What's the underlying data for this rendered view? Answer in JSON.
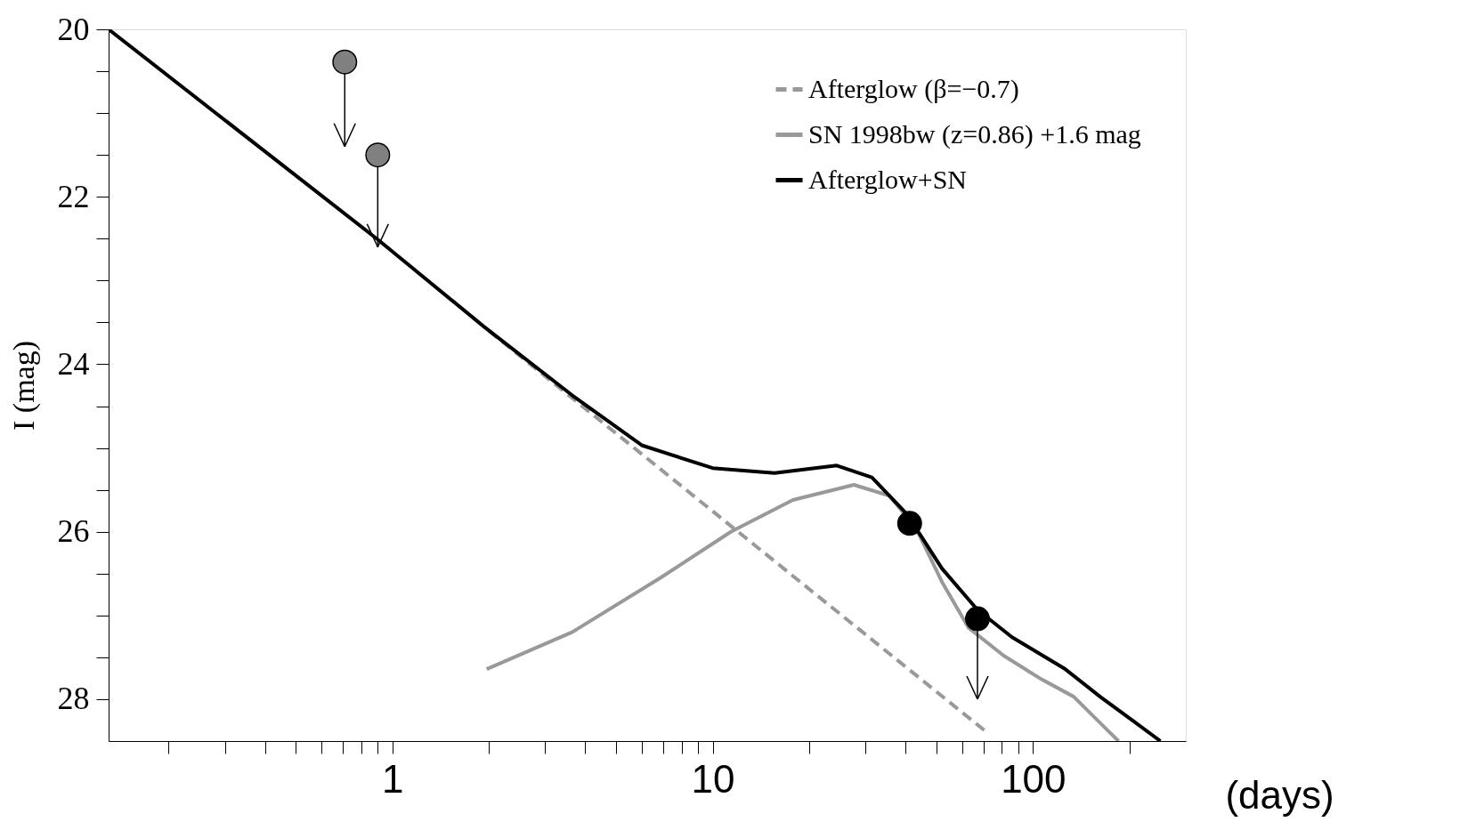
{
  "chart_data": {
    "type": "line",
    "xlabel": "(days)",
    "ylabel": "I (mag)",
    "log": "x",
    "grid": false,
    "legend": "top right",
    "xlim": [
      0.13,
      300
    ],
    "ylim": [
      28.5,
      20
    ],
    "xticks": [
      {
        "value": 0.2,
        "label": null
      },
      {
        "value": 0.3,
        "label": null
      },
      {
        "value": 0.4,
        "label": null
      },
      {
        "value": 0.5,
        "label": null
      },
      {
        "value": 0.6,
        "label": null
      },
      {
        "value": 0.7,
        "label": null
      },
      {
        "value": 0.8,
        "label": null
      },
      {
        "value": 0.9,
        "label": null
      },
      1,
      {
        "value": 2,
        "label": null
      },
      {
        "value": 3,
        "label": null
      },
      {
        "value": 4,
        "label": null
      },
      {
        "value": 5,
        "label": null
      },
      {
        "value": 6,
        "label": null
      },
      {
        "value": 7,
        "label": null
      },
      {
        "value": 8,
        "label": null
      },
      {
        "value": 9,
        "label": null
      },
      10,
      {
        "value": 20,
        "label": null
      },
      {
        "value": 30,
        "label": null
      },
      {
        "value": 40,
        "label": null
      },
      {
        "value": 50,
        "label": null
      },
      {
        "value": 60,
        "label": null
      },
      {
        "value": 70,
        "label": null
      },
      {
        "value": 80,
        "label": null
      },
      {
        "value": 90,
        "label": null
      },
      100,
      {
        "value": 200,
        "label": null
      }
    ],
    "yticks": [
      20,
      {
        "value": 20.5,
        "label": null
      },
      {
        "value": 21,
        "label": null
      },
      {
        "value": 21.5,
        "label": null
      },
      22,
      {
        "value": 22.5,
        "label": null
      },
      {
        "value": 23,
        "label": null
      },
      {
        "value": 23.5,
        "label": null
      },
      24,
      {
        "value": 24.5,
        "label": null
      },
      {
        "value": 25,
        "label": null
      },
      {
        "value": 25.5,
        "label": null
      },
      26,
      {
        "value": 26.5,
        "label": null
      },
      {
        "value": 27,
        "label": null
      },
      {
        "value": 27.5,
        "label": null
      },
      28
    ],
    "series": [
      {
        "name": "Afterglow (β=−0.7)",
        "type": "line",
        "color": "#999999",
        "line_style": "dashed",
        "x": [
          2.0,
          72
        ],
        "values": [
          23.6,
          28.4
        ]
      },
      {
        "name": "SN 1998bw (z=0.86) +1.6 mag",
        "type": "line",
        "color": "#999999",
        "line_style": "solid",
        "x": [
          1.97,
          3.64,
          6.87,
          11.4,
          17.8,
          27.6,
          35.6,
          43,
          52,
          63,
          81,
          105,
          134,
          174,
          185
        ],
        "values": [
          27.64,
          27.2,
          26.55,
          26.0,
          25.62,
          25.44,
          25.57,
          25.95,
          26.6,
          27.15,
          27.48,
          27.75,
          27.97,
          28.4,
          28.5
        ]
      },
      {
        "name": "Afterglow+SN",
        "type": "line",
        "color": "#000000",
        "line_style": "solid",
        "x": [
          0.13,
          0.9,
          1.93,
          3.64,
          6.03,
          10,
          15.6,
          24.4,
          31.4,
          40.4,
          52,
          67,
          86,
          126,
          162,
          250
        ],
        "values": [
          20.0,
          22.51,
          23.55,
          24.37,
          24.97,
          25.24,
          25.3,
          25.21,
          25.35,
          25.79,
          26.44,
          26.93,
          27.26,
          27.64,
          27.97,
          28.5
        ]
      },
      {
        "type": "scatter",
        "marker": "circle",
        "color": "#808080",
        "x": [
          0.71,
          0.9
        ],
        "values": [
          20.39,
          21.5
        ],
        "errors": [
          [
            20.39,
            21.4
          ],
          [
            21.5,
            22.6
          ]
        ]
      },
      {
        "type": "scatter",
        "marker": "circle",
        "color": "#000000",
        "x": [
          41.2,
          67.1
        ],
        "values": [
          25.9,
          27.04
        ],
        "errors": [
          null,
          [
            27.04,
            28.0
          ]
        ]
      }
    ]
  }
}
